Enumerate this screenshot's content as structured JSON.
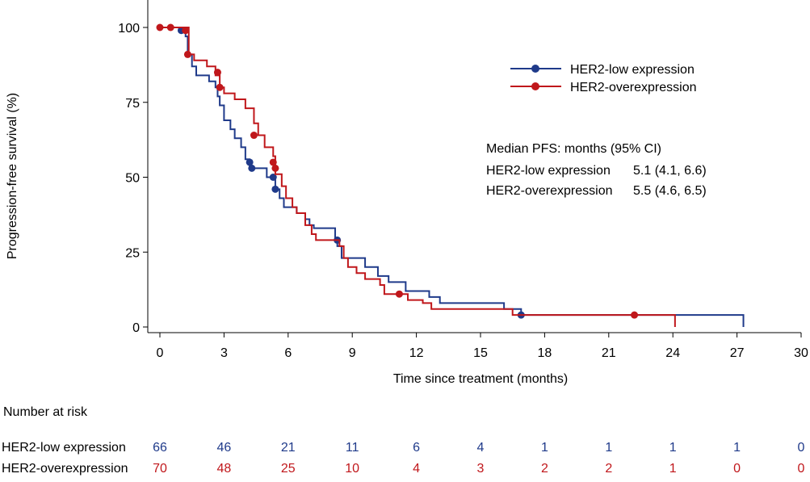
{
  "chart_data": {
    "type": "line",
    "subtype": "kaplan-meier",
    "xlabel": "Time since treatment (months)",
    "ylabel": "Progression-free survival (%)",
    "xlim": [
      0,
      30
    ],
    "ylim": [
      0,
      100
    ],
    "xticks": [
      "0",
      "3",
      "6",
      "9",
      "12",
      "15",
      "18",
      "21",
      "24",
      "27",
      "30"
    ],
    "yticks": [
      "0",
      "25",
      "50",
      "75",
      "100"
    ],
    "legend_position": "top-right",
    "series": [
      {
        "name": "HER2-low expression",
        "color": "#1f3a8a",
        "steps": [
          [
            0,
            100
          ],
          [
            1.0,
            100
          ],
          [
            1.1,
            98.5
          ],
          [
            1.2,
            97
          ],
          [
            1.3,
            91
          ],
          [
            1.5,
            87
          ],
          [
            1.7,
            84
          ],
          [
            2.3,
            82
          ],
          [
            2.6,
            80
          ],
          [
            2.7,
            77
          ],
          [
            2.8,
            74
          ],
          [
            3.0,
            69
          ],
          [
            3.3,
            66
          ],
          [
            3.5,
            63
          ],
          [
            3.8,
            60
          ],
          [
            4.0,
            56
          ],
          [
            4.2,
            53
          ],
          [
            5.0,
            50
          ],
          [
            5.4,
            46
          ],
          [
            5.6,
            43
          ],
          [
            5.8,
            40
          ],
          [
            6.4,
            38
          ],
          [
            6.8,
            36
          ],
          [
            7.0,
            34
          ],
          [
            7.2,
            33
          ],
          [
            8.2,
            29
          ],
          [
            8.3,
            27
          ],
          [
            8.5,
            23
          ],
          [
            9.6,
            20
          ],
          [
            10.2,
            17
          ],
          [
            10.7,
            15
          ],
          [
            11.5,
            12
          ],
          [
            12.6,
            10
          ],
          [
            13.1,
            8
          ],
          [
            16.1,
            6
          ],
          [
            16.9,
            4
          ],
          [
            27.3,
            4
          ],
          [
            27.3,
            0
          ]
        ],
        "censor": [
          [
            1.0,
            99
          ],
          [
            4.2,
            55
          ],
          [
            4.3,
            53
          ],
          [
            5.3,
            50
          ],
          [
            5.4,
            46
          ],
          [
            8.3,
            29
          ],
          [
            16.9,
            4
          ]
        ]
      },
      {
        "name": "HER2-overexpression",
        "color": "#c0171b",
        "steps": [
          [
            0,
            100
          ],
          [
            1.3,
            100
          ],
          [
            1.35,
            91
          ],
          [
            1.6,
            89
          ],
          [
            2.2,
            87
          ],
          [
            2.6,
            84
          ],
          [
            2.8,
            80
          ],
          [
            3.0,
            78
          ],
          [
            3.5,
            76
          ],
          [
            4.0,
            73
          ],
          [
            4.4,
            68
          ],
          [
            4.6,
            64
          ],
          [
            4.9,
            60
          ],
          [
            5.3,
            57
          ],
          [
            5.4,
            51
          ],
          [
            5.7,
            47
          ],
          [
            5.9,
            43
          ],
          [
            6.2,
            40
          ],
          [
            6.4,
            38
          ],
          [
            6.8,
            34
          ],
          [
            7.1,
            31
          ],
          [
            7.3,
            29
          ],
          [
            8.4,
            27
          ],
          [
            8.6,
            23
          ],
          [
            8.8,
            20
          ],
          [
            9.2,
            18
          ],
          [
            9.6,
            16
          ],
          [
            10.3,
            14
          ],
          [
            10.5,
            11
          ],
          [
            11.6,
            9
          ],
          [
            12.3,
            8
          ],
          [
            12.7,
            6
          ],
          [
            16.5,
            4
          ],
          [
            24.1,
            4
          ],
          [
            24.1,
            0
          ]
        ],
        "censor": [
          [
            0,
            100
          ],
          [
            0.5,
            100
          ],
          [
            1.2,
            99
          ],
          [
            1.3,
            91
          ],
          [
            2.7,
            85
          ],
          [
            2.8,
            80
          ],
          [
            4.4,
            64
          ],
          [
            5.3,
            55
          ],
          [
            5.4,
            53
          ],
          [
            11.2,
            11
          ],
          [
            22.2,
            4
          ]
        ]
      }
    ],
    "annotation": {
      "title": "Median PFS: months (95% CI)",
      "rows": [
        {
          "label": "HER2-low expression",
          "value": "5.1 (4.1, 6.6)"
        },
        {
          "label": "HER2-overexpression",
          "value": "5.5 (4.6, 6.5)"
        }
      ]
    },
    "risk_table": {
      "title": "Number at risk",
      "rows": [
        {
          "label": "HER2-low expression",
          "values": [
            "66",
            "46",
            "21",
            "11",
            "6",
            "4",
            "1",
            "1",
            "1",
            "1",
            "0"
          ]
        },
        {
          "label": "HER2-overexpression",
          "values": [
            "70",
            "48",
            "25",
            "10",
            "4",
            "3",
            "2",
            "2",
            "1",
            "0",
            "0"
          ]
        }
      ]
    }
  }
}
